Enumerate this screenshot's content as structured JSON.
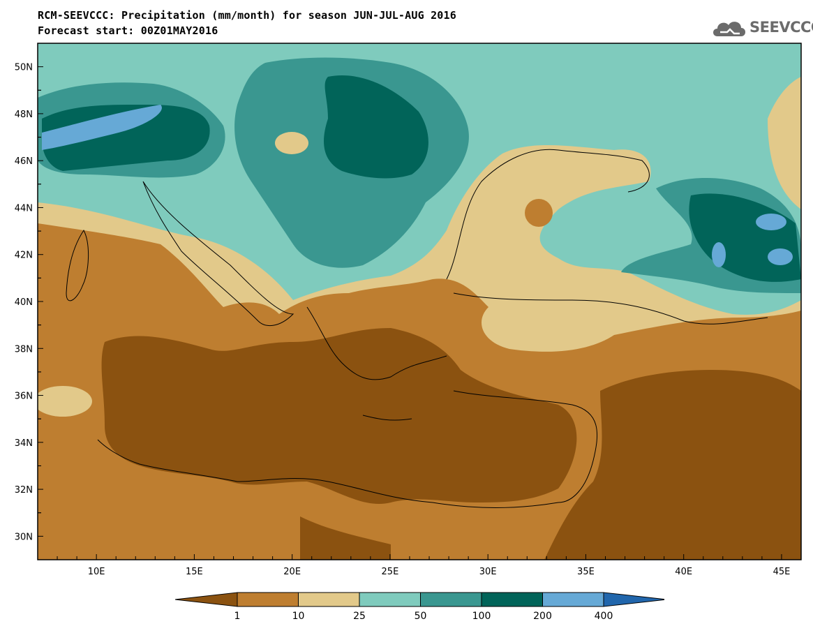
{
  "header": {
    "title_line1": "RCM-SEEVCCC: Precipitation (mm/month) for season JUN-JUL-AUG 2016",
    "title_line2": "Forecast start: 00Z01MAY2016"
  },
  "logo": {
    "text": "SEEVCCC",
    "icon": "cloud-icon"
  },
  "map": {
    "longitude_ticks": [
      "10E",
      "15E",
      "20E",
      "25E",
      "30E",
      "35E",
      "40E",
      "45E"
    ],
    "latitude_ticks": [
      "50N",
      "48N",
      "46N",
      "44N",
      "42N",
      "40N",
      "38N",
      "36N",
      "34N",
      "32N",
      "30N"
    ]
  },
  "legend": {
    "labels": [
      "1",
      "10",
      "25",
      "50",
      "100",
      "200",
      "400"
    ],
    "colors": [
      "#8b5210",
      "#be7e30",
      "#e2c98a",
      "#7fcbbd",
      "#3a9790",
      "#016459",
      "#66a9d6",
      "#2166ac"
    ]
  }
}
